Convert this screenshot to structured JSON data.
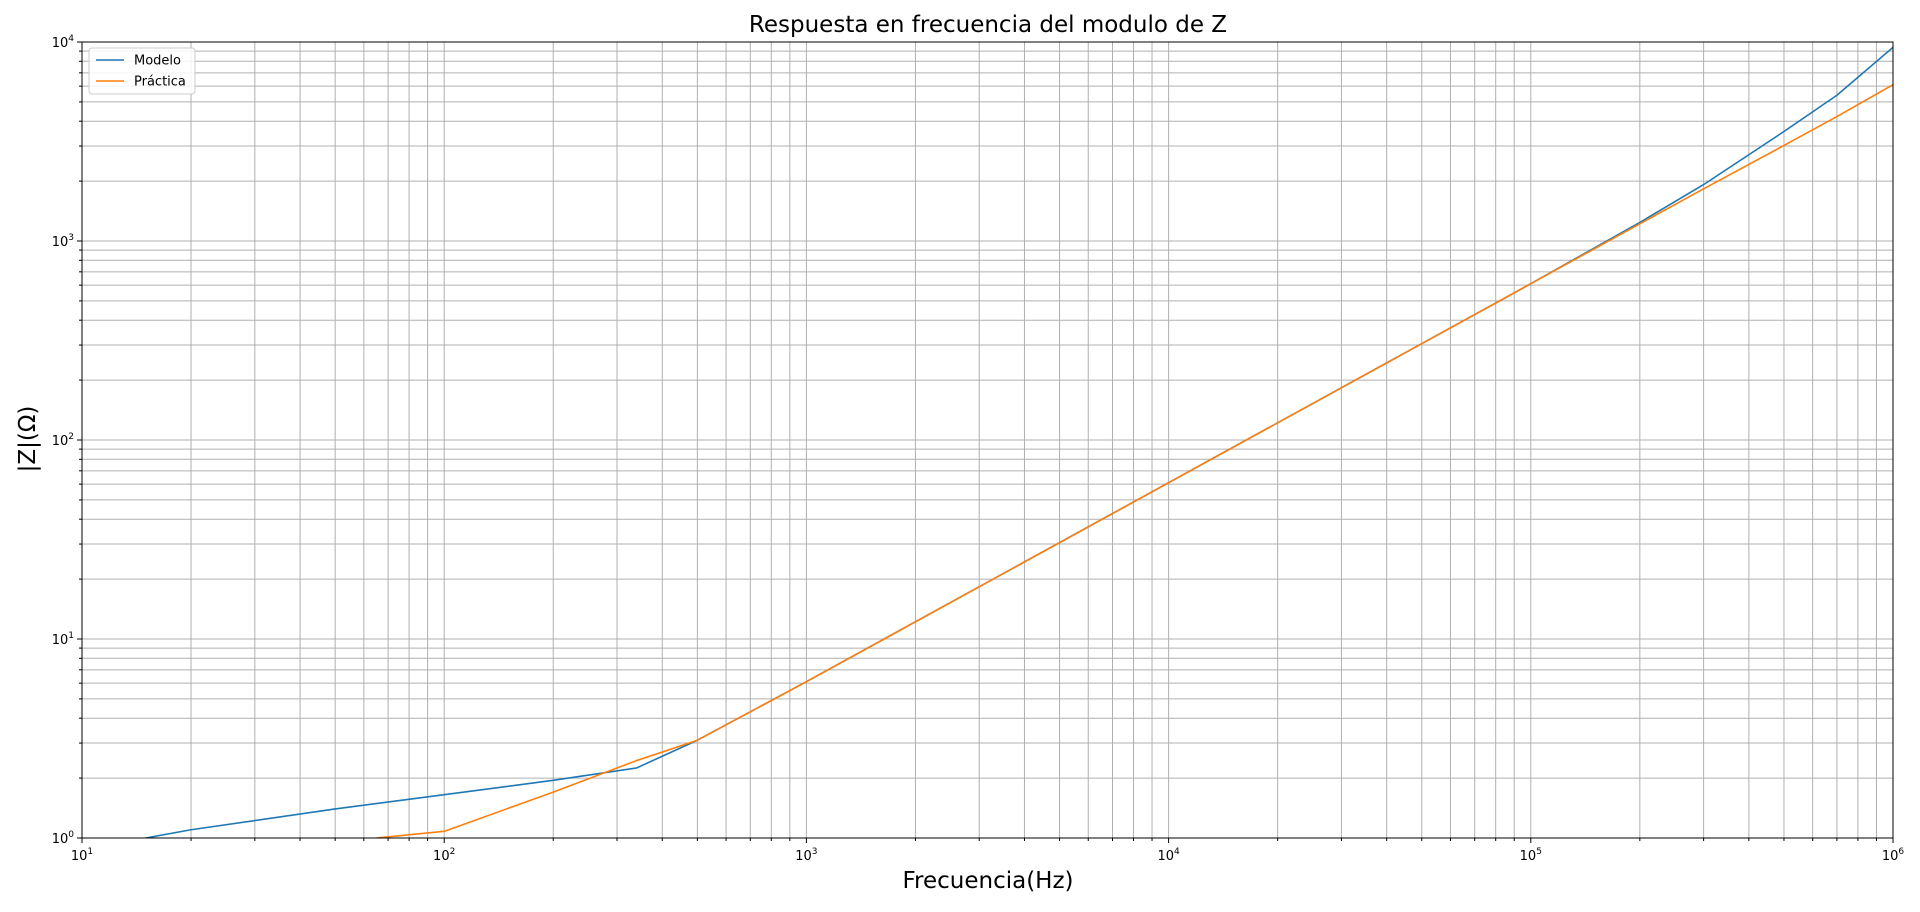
{
  "chart_data": {
    "type": "line",
    "title": "Respuesta en frecuencia del modulo de Z",
    "xlabel": "Frecuencia(Hz)",
    "ylabel": "|Z|(Ω)",
    "xscale": "log",
    "yscale": "log",
    "xlim": [
      10,
      1000000
    ],
    "ylim": [
      1,
      10000
    ],
    "grid": "major and minor",
    "legend_position": "top-left",
    "x_ticks": [
      {
        "base": "10",
        "exp": "1"
      },
      {
        "base": "10",
        "exp": "2"
      },
      {
        "base": "10",
        "exp": "3"
      },
      {
        "base": "10",
        "exp": "4"
      },
      {
        "base": "10",
        "exp": "5"
      },
      {
        "base": "10",
        "exp": "6"
      }
    ],
    "y_ticks": [
      {
        "base": "10",
        "exp": "0"
      },
      {
        "base": "10",
        "exp": "1"
      },
      {
        "base": "10",
        "exp": "2"
      },
      {
        "base": "10",
        "exp": "3"
      },
      {
        "base": "10",
        "exp": "4"
      }
    ],
    "series": [
      {
        "name": "Modelo",
        "color": "#1f77b4",
        "x": [
          15,
          20,
          50,
          100,
          200,
          340,
          500,
          1000,
          10000,
          100000,
          200000,
          300000,
          500000,
          700000,
          1000000
        ],
        "y": [
          1.0,
          1.1,
          1.4,
          1.65,
          1.95,
          2.25,
          3.1,
          6.1,
          61,
          610,
          1240,
          1920,
          3550,
          5400,
          9400
        ]
      },
      {
        "name": "Práctica",
        "color": "#ff7f0e",
        "x": [
          65,
          100,
          200,
          340,
          500,
          1000,
          10000,
          100000,
          200000,
          300000,
          500000,
          700000,
          1000000
        ],
        "y": [
          1.0,
          1.08,
          1.7,
          2.45,
          3.1,
          6.1,
          61,
          610,
          1220,
          1830,
          3020,
          4220,
          6100
        ]
      }
    ]
  }
}
